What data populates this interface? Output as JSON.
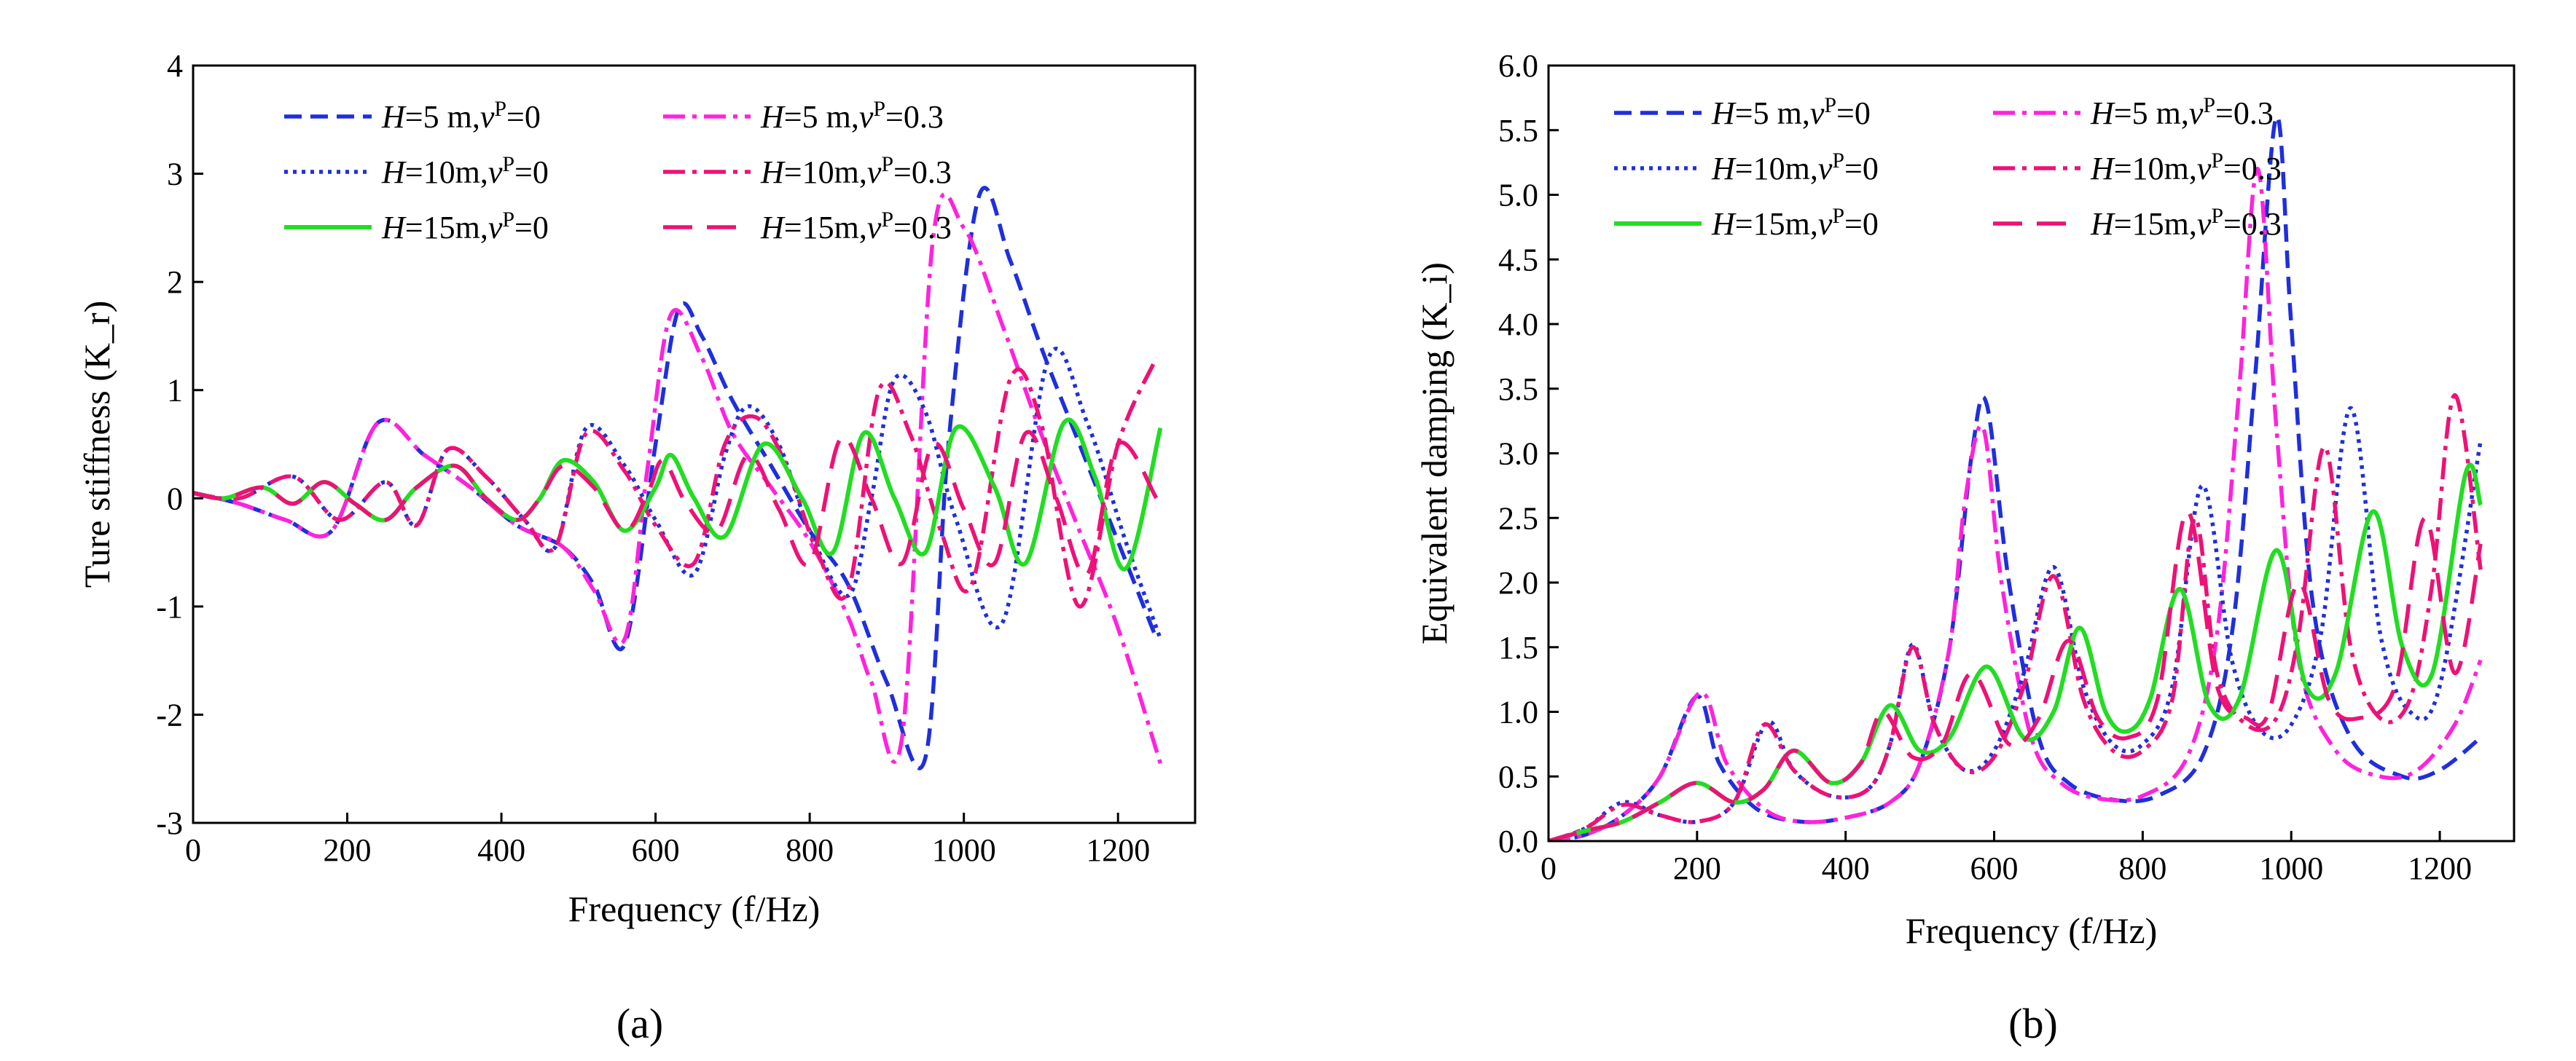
{
  "colors": {
    "blue": "#1f2fdc",
    "magenta": "#ff22dd",
    "green": "#22dd22",
    "crimson": "#ee1177",
    "axis": "#000000"
  },
  "chart_data": [
    {
      "id": "a",
      "type": "line",
      "panel_label": "(a)",
      "title": "",
      "xlabel": "Frequency (f/Hz)",
      "ylabel": "Ture stiffness (K_r)",
      "xlim": [
        0,
        1300
      ],
      "ylim": [
        -3,
        4
      ],
      "xticks": [
        0,
        200,
        400,
        600,
        800,
        1000,
        1200
      ],
      "yticks": [
        -3,
        -2,
        -1,
        0,
        1,
        2,
        3,
        4
      ],
      "xtick_labels": [
        "0",
        "200",
        "400",
        "600",
        "800",
        "1000",
        "1200"
      ],
      "ytick_labels": [
        "-3",
        "-2",
        "-1",
        "0",
        "1",
        "2",
        "3",
        "4"
      ],
      "legend_position": "top",
      "series": [
        {
          "name": "H=5 m,v^P=0",
          "label": {
            "H": "H",
            "rest": "=5 m,",
            "v": "v",
            "sup": "P",
            "eq": "=0"
          },
          "color": "blue",
          "dash": "dash",
          "x": [
            0,
            60,
            120,
            180,
            240,
            300,
            360,
            420,
            480,
            520,
            560,
            600,
            630,
            660,
            700,
            750,
            800,
            850,
            900,
            950,
            980,
            1020,
            1060,
            1100,
            1150,
            1200,
            1250
          ],
          "y": [
            0.05,
            -0.05,
            -0.2,
            -0.3,
            0.7,
            0.4,
            0.1,
            -0.25,
            -0.45,
            -0.8,
            -1.35,
            0.5,
            1.75,
            1.5,
            0.9,
            0.3,
            -0.3,
            -0.8,
            -1.7,
            -2.4,
            0.5,
            2.8,
            2.2,
            1.4,
            0.5,
            -0.4,
            -1.3
          ]
        },
        {
          "name": "H=5 m,v^P=0.3",
          "label": {
            "H": "H",
            "rest": "=5 m,",
            "v": "v",
            "sup": "P",
            "eq": "=0.3"
          },
          "color": "magenta",
          "dash": "dashdot",
          "x": [
            0,
            60,
            120,
            180,
            240,
            300,
            360,
            420,
            480,
            520,
            560,
            590,
            620,
            660,
            700,
            750,
            800,
            850,
            880,
            920,
            960,
            1000,
            1050,
            1100,
            1150,
            1200,
            1255
          ],
          "y": [
            0.05,
            -0.05,
            -0.2,
            -0.3,
            0.7,
            0.4,
            0.1,
            -0.25,
            -0.45,
            -0.85,
            -1.3,
            0.3,
            1.7,
            1.3,
            0.6,
            0.1,
            -0.4,
            -1.1,
            -1.7,
            -2.2,
            2.4,
            2.5,
            1.6,
            0.6,
            -0.3,
            -1.2,
            -2.45
          ]
        },
        {
          "name": "H=10m,v^P=0",
          "label": {
            "H": "H",
            "rest": "=10m,",
            "v": "v",
            "sup": "P",
            "eq": "=0"
          },
          "color": "blue",
          "dash": "dot",
          "x": [
            0,
            60,
            130,
            190,
            250,
            290,
            330,
            380,
            430,
            470,
            510,
            560,
            600,
            650,
            690,
            720,
            760,
            800,
            850,
            880,
            910,
            950,
            990,
            1050,
            1110,
            1160,
            1210,
            1255
          ],
          "y": [
            0.05,
            0.0,
            0.2,
            -0.2,
            0.15,
            -0.25,
            0.45,
            0.2,
            -0.2,
            -0.45,
            0.65,
            0.3,
            -0.2,
            -0.7,
            0.4,
            0.85,
            0.5,
            -0.3,
            -0.9,
            0.0,
            1.1,
            0.8,
            -0.2,
            -1.15,
            1.3,
            0.7,
            -0.4,
            -1.3
          ]
        },
        {
          "name": "H=10m,v^P=0.3",
          "label": {
            "H": "H",
            "rest": "=10m,",
            "v": "v",
            "sup": "P",
            "eq": "=0.3"
          },
          "color": "crimson",
          "dash": "dashdot",
          "x": [
            0,
            60,
            130,
            190,
            250,
            290,
            330,
            380,
            430,
            470,
            510,
            560,
            600,
            650,
            690,
            730,
            770,
            810,
            850,
            890,
            930,
            970,
            1010,
            1060,
            1100,
            1150,
            1200,
            1250
          ],
          "y": [
            0.05,
            0.0,
            0.2,
            -0.2,
            0.15,
            -0.25,
            0.45,
            0.2,
            -0.2,
            -0.45,
            0.6,
            0.25,
            -0.25,
            -0.6,
            0.5,
            0.75,
            0.3,
            -0.5,
            -0.85,
            1.0,
            0.6,
            -0.3,
            -0.8,
            1.1,
            0.7,
            -1.0,
            0.5,
            1.3
          ]
        },
        {
          "name": "H=15m,v^P=0",
          "label": {
            "H": "H",
            "rest": "=15m,",
            "v": "v",
            "sup": "P",
            "eq": "=0"
          },
          "color": "green",
          "dash": "solid",
          "x": [
            0,
            40,
            90,
            130,
            170,
            210,
            250,
            290,
            340,
            380,
            420,
            450,
            480,
            520,
            560,
            600,
            620,
            650,
            690,
            740,
            790,
            830,
            870,
            910,
            950,
            990,
            1040,
            1080,
            1130,
            1170,
            1210,
            1255
          ],
          "y": [
            0.05,
            0.0,
            0.1,
            -0.05,
            0.15,
            -0.05,
            -0.2,
            0.1,
            0.3,
            0.0,
            -0.2,
            0.0,
            0.35,
            0.15,
            -0.3,
            0.1,
            0.4,
            0.0,
            -0.35,
            0.5,
            0.0,
            -0.5,
            0.6,
            0.0,
            -0.5,
            0.65,
            0.1,
            -0.6,
            0.7,
            0.2,
            -0.65,
            0.65
          ]
        },
        {
          "name": "H=15m,v^P=0.3",
          "label": {
            "H": "H",
            "rest": "=15m,",
            "v": "v",
            "sup": "P",
            "eq": "=0.3"
          },
          "color": "crimson",
          "dash": "longdash",
          "x": [
            0,
            40,
            90,
            130,
            170,
            210,
            250,
            290,
            340,
            380,
            420,
            450,
            480,
            520,
            560,
            590,
            610,
            640,
            680,
            720,
            760,
            800,
            840,
            880,
            920,
            960,
            1000,
            1040,
            1080,
            1120,
            1160,
            1200,
            1250
          ],
          "y": [
            0.05,
            0.0,
            0.1,
            -0.05,
            0.15,
            -0.05,
            -0.2,
            0.1,
            0.3,
            0.0,
            -0.2,
            0.0,
            0.3,
            0.1,
            -0.3,
            0.05,
            0.35,
            -0.05,
            -0.3,
            0.4,
            -0.1,
            -0.6,
            0.55,
            0.0,
            -0.6,
            0.5,
            -0.1,
            -0.6,
            0.6,
            0.0,
            -0.7,
            0.5,
            0.0
          ]
        }
      ]
    },
    {
      "id": "b",
      "type": "line",
      "panel_label": "(b)",
      "title": "",
      "xlabel": "Frequency (f/Hz)",
      "ylabel": "Equivalent damping (K_i)",
      "xlim": [
        0,
        1300
      ],
      "ylim": [
        0,
        6
      ],
      "xticks": [
        0,
        200,
        400,
        600,
        800,
        1000,
        1200
      ],
      "yticks": [
        0,
        0.5,
        1,
        1.5,
        2,
        2.5,
        3,
        3.5,
        4,
        4.5,
        5,
        5.5,
        6
      ],
      "xtick_labels": [
        "0",
        "200",
        "400",
        "600",
        "800",
        "1000",
        "1200"
      ],
      "ytick_labels": [
        "0.0",
        "0.5",
        "1.0",
        "1.5",
        "2.0",
        "2.5",
        "3.0",
        "3.5",
        "4.0",
        "4.5",
        "5.0",
        "5.5",
        "6.0"
      ],
      "legend_position": "top-left",
      "series": [
        {
          "name": "H=5 m,v^P=0",
          "label": {
            "H": "H",
            "rest": "=5 m,",
            "v": "v",
            "sup": "P",
            "eq": "=0"
          },
          "color": "blue",
          "dash": "dash",
          "x": [
            0,
            50,
            100,
            150,
            200,
            230,
            280,
            340,
            400,
            460,
            500,
            540,
            570,
            590,
            620,
            660,
            700,
            760,
            820,
            880,
            920,
            950,
            980,
            1000,
            1030,
            1080,
            1150,
            1200,
            1255
          ],
          "y": [
            0,
            0.05,
            0.2,
            0.5,
            1.12,
            0.6,
            0.25,
            0.15,
            0.18,
            0.3,
            0.6,
            1.5,
            3.0,
            3.38,
            2.0,
            0.8,
            0.45,
            0.32,
            0.35,
            0.65,
            1.6,
            3.5,
            5.6,
            4.0,
            1.8,
            0.8,
            0.5,
            0.55,
            0.8
          ]
        },
        {
          "name": "H=5 m,v^P=0.3",
          "label": {
            "H": "H",
            "rest": "=5 m,",
            "v": "v",
            "sup": "P",
            "eq": "=0.3"
          },
          "color": "magenta",
          "dash": "dashdot",
          "x": [
            0,
            50,
            100,
            150,
            205,
            240,
            290,
            340,
            400,
            460,
            500,
            540,
            560,
            585,
            610,
            650,
            690,
            740,
            800,
            860,
            900,
            930,
            955,
            980,
            1010,
            1060,
            1120,
            1170,
            1220,
            1255
          ],
          "y": [
            0,
            0.05,
            0.2,
            0.5,
            1.15,
            0.6,
            0.25,
            0.15,
            0.18,
            0.3,
            0.6,
            1.5,
            2.6,
            3.2,
            2.0,
            0.8,
            0.45,
            0.33,
            0.35,
            0.65,
            1.6,
            3.5,
            5.2,
            3.2,
            1.4,
            0.7,
            0.5,
            0.55,
            0.9,
            1.4
          ]
        },
        {
          "name": "H=10m,v^P=0",
          "label": {
            "H": "H",
            "rest": "=10m,",
            "v": "v",
            "sup": "P",
            "eq": "=0"
          },
          "color": "blue",
          "dash": "dot",
          "x": [
            0,
            50,
            100,
            150,
            200,
            250,
            295,
            330,
            380,
            430,
            460,
            490,
            520,
            560,
            600,
            640,
            680,
            720,
            760,
            800,
            840,
            880,
            920,
            960,
            1000,
            1040,
            1080,
            1120,
            1160,
            1200,
            1255
          ],
          "y": [
            0,
            0.1,
            0.3,
            0.2,
            0.15,
            0.3,
            0.92,
            0.55,
            0.35,
            0.4,
            0.75,
            1.52,
            0.9,
            0.55,
            0.7,
            1.3,
            2.12,
            1.2,
            0.75,
            0.75,
            1.2,
            2.75,
            1.4,
            0.85,
            0.9,
            1.6,
            3.35,
            1.6,
            1.0,
            1.2,
            3.1
          ]
        },
        {
          "name": "H=10m,v^P=0.3",
          "label": {
            "H": "H",
            "rest": "=10m,",
            "v": "v",
            "sup": "P",
            "eq": "=0.3"
          },
          "color": "crimson",
          "dash": "dashdot",
          "x": [
            0,
            50,
            100,
            150,
            200,
            250,
            290,
            330,
            380,
            430,
            460,
            490,
            520,
            560,
            600,
            640,
            680,
            720,
            760,
            800,
            840,
            870,
            900,
            940,
            980,
            1010,
            1045,
            1080,
            1120,
            1160,
            1190,
            1220,
            1255
          ],
          "y": [
            0,
            0.1,
            0.28,
            0.2,
            0.15,
            0.3,
            0.9,
            0.55,
            0.35,
            0.4,
            0.75,
            1.5,
            0.9,
            0.55,
            0.65,
            1.2,
            2.05,
            1.1,
            0.7,
            0.7,
            1.1,
            2.5,
            1.3,
            0.9,
            0.95,
            1.6,
            3.05,
            1.5,
            0.95,
            1.1,
            2.0,
            3.45,
            2.1
          ]
        },
        {
          "name": "H=15m,v^P=0",
          "label": {
            "H": "H",
            "rest": "=15m,",
            "v": "v",
            "sup": "P",
            "eq": "=0"
          },
          "color": "green",
          "dash": "solid",
          "x": [
            0,
            50,
            100,
            150,
            200,
            250,
            290,
            330,
            380,
            420,
            460,
            500,
            540,
            590,
            640,
            680,
            715,
            750,
            780,
            810,
            850,
            890,
            930,
            980,
            1020,
            1060,
            1110,
            1150,
            1190,
            1235,
            1255
          ],
          "y": [
            0,
            0.08,
            0.15,
            0.3,
            0.45,
            0.3,
            0.4,
            0.7,
            0.45,
            0.6,
            1.05,
            0.7,
            0.8,
            1.35,
            0.8,
            1.0,
            1.65,
            1.0,
            0.85,
            1.1,
            1.95,
            1.05,
            1.1,
            2.25,
            1.2,
            1.3,
            2.55,
            1.5,
            1.3,
            2.85,
            2.6
          ]
        },
        {
          "name": "H=15m,v^P=0.3",
          "label": {
            "H": "H",
            "rest": "=15m,",
            "v": "v",
            "sup": "P",
            "eq": "=0.3"
          },
          "color": "crimson",
          "dash": "longdash",
          "x": [
            0,
            50,
            100,
            150,
            200,
            250,
            290,
            330,
            380,
            420,
            450,
            490,
            530,
            570,
            620,
            660,
            700,
            740,
            780,
            820,
            860,
            900,
            940,
            970,
            1010,
            1050,
            1090,
            1140,
            1180,
            1220,
            1255
          ],
          "y": [
            0,
            0.08,
            0.15,
            0.3,
            0.45,
            0.3,
            0.4,
            0.7,
            0.45,
            0.6,
            1.0,
            0.65,
            0.75,
            1.3,
            0.75,
            0.95,
            1.55,
            0.95,
            0.8,
            1.1,
            2.55,
            1.2,
            0.95,
            1.0,
            2.0,
            1.1,
            0.95,
            1.2,
            2.5,
            1.3,
            2.3
          ]
        }
      ]
    }
  ]
}
